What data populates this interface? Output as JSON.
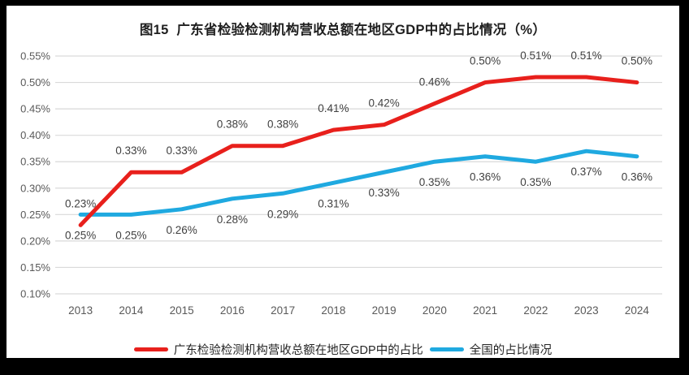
{
  "chart_data": {
    "type": "line",
    "title": "图15  广东省检验检测机构营收总额在地区GDP中的占比情况（%）",
    "categories": [
      "2013",
      "2014",
      "2015",
      "2016",
      "2017",
      "2018",
      "2019",
      "2020",
      "2021",
      "2022",
      "2023",
      "2024"
    ],
    "series": [
      {
        "name": "广东检验检测机构营收总额在地区GDP中的占比",
        "color": "#e8201c",
        "values": [
          0.23,
          0.33,
          0.33,
          0.38,
          0.38,
          0.41,
          0.42,
          0.46,
          0.5,
          0.51,
          0.51,
          0.5
        ],
        "labels": [
          "0.23%",
          "0.33%",
          "0.33%",
          "0.38%",
          "0.38%",
          "0.41%",
          "0.42%",
          "0.46%",
          "0.50%",
          "0.51%",
          "0.51%",
          "0.50%"
        ],
        "label_position": "above"
      },
      {
        "name": "全国的占比情况",
        "color": "#1fa9e0",
        "values": [
          0.25,
          0.25,
          0.26,
          0.28,
          0.29,
          0.31,
          0.33,
          0.35,
          0.36,
          0.35,
          0.37,
          0.36
        ],
        "labels": [
          "0.25%",
          "0.25%",
          "0.26%",
          "0.28%",
          "0.29%",
          "0.31%",
          "0.33%",
          "0.35%",
          "0.36%",
          "0.35%",
          "0.37%",
          "0.36%"
        ],
        "label_position": "below"
      }
    ],
    "ylim": [
      0.1,
      0.55
    ],
    "ytick_step": 0.05,
    "ytick_labels": [
      "0.10%",
      "0.15%",
      "0.20%",
      "0.25%",
      "0.30%",
      "0.35%",
      "0.40%",
      "0.45%",
      "0.50%",
      "0.55%"
    ],
    "grid": true,
    "legend_position": "bottom",
    "colors": {
      "gridline": "#d9d9d9",
      "axis_text": "#595959",
      "data_label": "#404040",
      "title_text": "#1f1f1f",
      "frame": "#000000",
      "background": "#ffffff"
    }
  }
}
